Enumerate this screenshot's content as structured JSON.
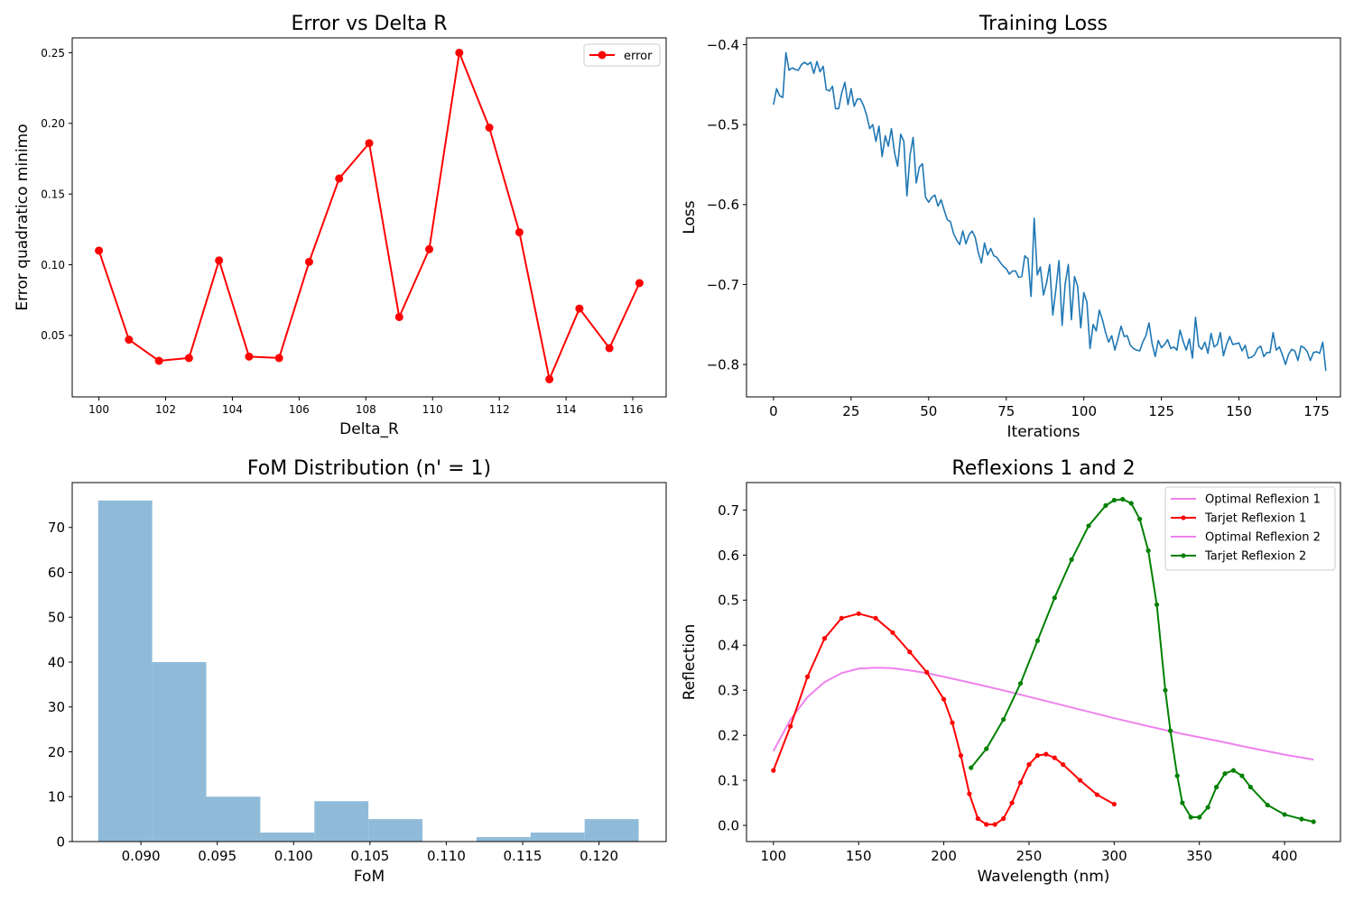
{
  "chart_data": [
    {
      "type": "line",
      "title": "Error vs Delta R",
      "xlabel": "Delta_R",
      "ylabel": "Error quadratico minimo",
      "xlim": [
        99.2,
        117.0
      ],
      "ylim": [
        0.0065,
        0.2605
      ],
      "xticks": [
        100,
        102,
        104,
        106,
        108,
        110,
        112,
        114,
        116
      ],
      "yticks": [
        0.05,
        0.1,
        0.15,
        0.2,
        0.25
      ],
      "ytick_labels": [
        "0.05",
        "0.10",
        "0.15",
        "0.20",
        "0.25"
      ],
      "legend": "top-right",
      "series": [
        {
          "name": "error",
          "color": "#ff0000",
          "marker": "circle",
          "x": [
            100.0,
            100.9,
            101.8,
            102.7,
            103.6,
            104.5,
            105.4,
            106.3,
            107.2,
            108.1,
            109.0,
            109.9,
            110.8,
            111.7,
            112.6,
            113.5,
            114.4,
            115.3,
            116.2
          ],
          "y": [
            0.11,
            0.047,
            0.032,
            0.034,
            0.103,
            0.035,
            0.034,
            0.102,
            0.161,
            0.186,
            0.063,
            0.111,
            0.25,
            0.197,
            0.123,
            0.019,
            0.069,
            0.041,
            0.087
          ]
        }
      ]
    },
    {
      "type": "line",
      "title": "Training Loss",
      "xlabel": "Iterations",
      "ylabel": "Loss",
      "xlim": [
        -8.7,
        182.7
      ],
      "ylim": [
        -0.8405,
        -0.3915
      ],
      "xticks": [
        0,
        25,
        50,
        75,
        100,
        125,
        150,
        175
      ],
      "yticks": [
        -0.8,
        -0.7,
        -0.6,
        -0.5,
        -0.4
      ],
      "ytick_labels": [
        "−0.8",
        "−0.7",
        "−0.6",
        "−0.5",
        "−0.4"
      ],
      "series": [
        {
          "color": "#1f77b4",
          "x_start": 0,
          "x_step": 1,
          "y": [
            -0.475,
            -0.455,
            -0.464,
            -0.466,
            -0.41,
            -0.432,
            -0.429,
            -0.431,
            -0.432,
            -0.425,
            -0.422,
            -0.425,
            -0.422,
            -0.436,
            -0.421,
            -0.434,
            -0.427,
            -0.456,
            -0.458,
            -0.452,
            -0.48,
            -0.48,
            -0.46,
            -0.447,
            -0.475,
            -0.455,
            -0.477,
            -0.468,
            -0.468,
            -0.476,
            -0.488,
            -0.505,
            -0.5,
            -0.521,
            -0.502,
            -0.54,
            -0.514,
            -0.527,
            -0.505,
            -0.535,
            -0.552,
            -0.512,
            -0.521,
            -0.589,
            -0.538,
            -0.516,
            -0.573,
            -0.553,
            -0.549,
            -0.591,
            -0.597,
            -0.591,
            -0.588,
            -0.602,
            -0.594,
            -0.607,
            -0.619,
            -0.621,
            -0.636,
            -0.644,
            -0.65,
            -0.633,
            -0.649,
            -0.638,
            -0.633,
            -0.641,
            -0.66,
            -0.673,
            -0.648,
            -0.663,
            -0.655,
            -0.664,
            -0.666,
            -0.672,
            -0.677,
            -0.68,
            -0.687,
            -0.683,
            -0.683,
            -0.691,
            -0.69,
            -0.664,
            -0.668,
            -0.715,
            -0.617,
            -0.688,
            -0.678,
            -0.713,
            -0.698,
            -0.675,
            -0.738,
            -0.706,
            -0.67,
            -0.751,
            -0.699,
            -0.675,
            -0.744,
            -0.69,
            -0.702,
            -0.754,
            -0.71,
            -0.722,
            -0.78,
            -0.75,
            -0.758,
            -0.732,
            -0.744,
            -0.76,
            -0.772,
            -0.764,
            -0.782,
            -0.768,
            -0.752,
            -0.765,
            -0.764,
            -0.776,
            -0.78,
            -0.782,
            -0.783,
            -0.772,
            -0.764,
            -0.748,
            -0.774,
            -0.79,
            -0.77,
            -0.779,
            -0.775,
            -0.769,
            -0.78,
            -0.778,
            -0.782,
            -0.757,
            -0.771,
            -0.782,
            -0.768,
            -0.792,
            -0.741,
            -0.777,
            -0.781,
            -0.772,
            -0.786,
            -0.761,
            -0.778,
            -0.775,
            -0.76,
            -0.789,
            -0.775,
            -0.765,
            -0.775,
            -0.774,
            -0.773,
            -0.783,
            -0.776,
            -0.792,
            -0.791,
            -0.788,
            -0.78,
            -0.777,
            -0.79,
            -0.785,
            -0.785,
            -0.76,
            -0.782,
            -0.778,
            -0.788,
            -0.8,
            -0.787,
            -0.781,
            -0.783,
            -0.795,
            -0.777,
            -0.779,
            -0.784,
            -0.795,
            -0.785,
            -0.784,
            -0.786,
            -0.772,
            -0.808
          ]
        }
      ]
    },
    {
      "type": "bar",
      "title": "FoM Distribution (n' = 1)",
      "xlabel": "FoM",
      "ylabel": "",
      "xlim": [
        0.0855,
        0.1244
      ],
      "ylim": [
        0,
        80
      ],
      "xticks": [
        0.09,
        0.095,
        0.1,
        0.105,
        0.11,
        0.115,
        0.12
      ],
      "xtick_labels": [
        "0.090",
        "0.095",
        "0.100",
        "0.105",
        "0.110",
        "0.115",
        "0.120"
      ],
      "yticks": [
        0,
        10,
        20,
        30,
        40,
        50,
        60,
        70
      ],
      "color": "#8fbbd9",
      "bin_edges": [
        0.0872,
        0.09074,
        0.09428,
        0.09782,
        0.10136,
        0.1049,
        0.10844,
        0.11198,
        0.11552,
        0.11906,
        0.1226
      ],
      "values": [
        76,
        40,
        10,
        2,
        9,
        5,
        0,
        1,
        2,
        5
      ]
    },
    {
      "type": "line",
      "title": "Reflexions 1 and 2",
      "xlabel": "Wavelength (nm)",
      "ylabel": "Reflection",
      "xlim": [
        84.2,
        432.8
      ],
      "ylim": [
        -0.036,
        0.761
      ],
      "xticks": [
        100,
        150,
        200,
        250,
        300,
        350,
        400
      ],
      "yticks": [
        0.0,
        0.1,
        0.2,
        0.3,
        0.4,
        0.5,
        0.6,
        0.7
      ],
      "ytick_labels": [
        "0.0",
        "0.1",
        "0.2",
        "0.3",
        "0.4",
        "0.5",
        "0.6",
        "0.7"
      ],
      "legend": "top-right",
      "series": [
        {
          "name": "Optimal Reflexion 1",
          "color": "#ee82ee",
          "marker": "none",
          "x": [
            100,
            110,
            120,
            130,
            140,
            150,
            160,
            170,
            180,
            190,
            200,
            220,
            240,
            260,
            280,
            300,
            320,
            340,
            360,
            380,
            400,
            417
          ],
          "y": [
            0.165,
            0.235,
            0.285,
            0.318,
            0.338,
            0.348,
            0.35,
            0.349,
            0.344,
            0.338,
            0.33,
            0.313,
            0.295,
            0.276,
            0.257,
            0.238,
            0.22,
            0.203,
            0.188,
            0.172,
            0.157,
            0.146
          ]
        },
        {
          "name": "Tarjet Reflexion 1",
          "color": "#ff0000",
          "marker": "circle",
          "x": [
            100,
            110,
            120,
            130,
            140,
            150,
            160,
            170,
            180,
            190,
            200,
            205,
            210,
            215,
            220,
            225,
            230,
            235,
            240,
            245,
            250,
            255,
            260,
            265,
            270,
            280,
            290,
            300
          ],
          "y": [
            0.122,
            0.22,
            0.33,
            0.415,
            0.46,
            0.47,
            0.46,
            0.428,
            0.385,
            0.34,
            0.28,
            0.228,
            0.155,
            0.07,
            0.015,
            0.002,
            0.002,
            0.015,
            0.05,
            0.095,
            0.135,
            0.155,
            0.158,
            0.15,
            0.135,
            0.1,
            0.068,
            0.047
          ]
        },
        {
          "name": "Optimal Reflexion 2",
          "color": "#ee82ee",
          "marker": "none",
          "x": [],
          "y": []
        },
        {
          "name": "Tarjet Reflexion 2",
          "color": "#008000",
          "marker": "circle",
          "x": [
            216,
            225,
            235,
            245,
            255,
            265,
            275,
            285,
            295,
            300,
            305,
            310,
            315,
            320,
            325,
            330,
            333,
            337,
            340,
            345,
            350,
            355,
            360,
            365,
            370,
            375,
            380,
            390,
            400,
            410,
            417
          ],
          "y": [
            0.128,
            0.17,
            0.235,
            0.315,
            0.41,
            0.505,
            0.59,
            0.665,
            0.71,
            0.722,
            0.724,
            0.715,
            0.68,
            0.61,
            0.49,
            0.3,
            0.21,
            0.11,
            0.05,
            0.018,
            0.018,
            0.04,
            0.085,
            0.115,
            0.122,
            0.11,
            0.085,
            0.045,
            0.024,
            0.014,
            0.008
          ]
        }
      ]
    }
  ]
}
